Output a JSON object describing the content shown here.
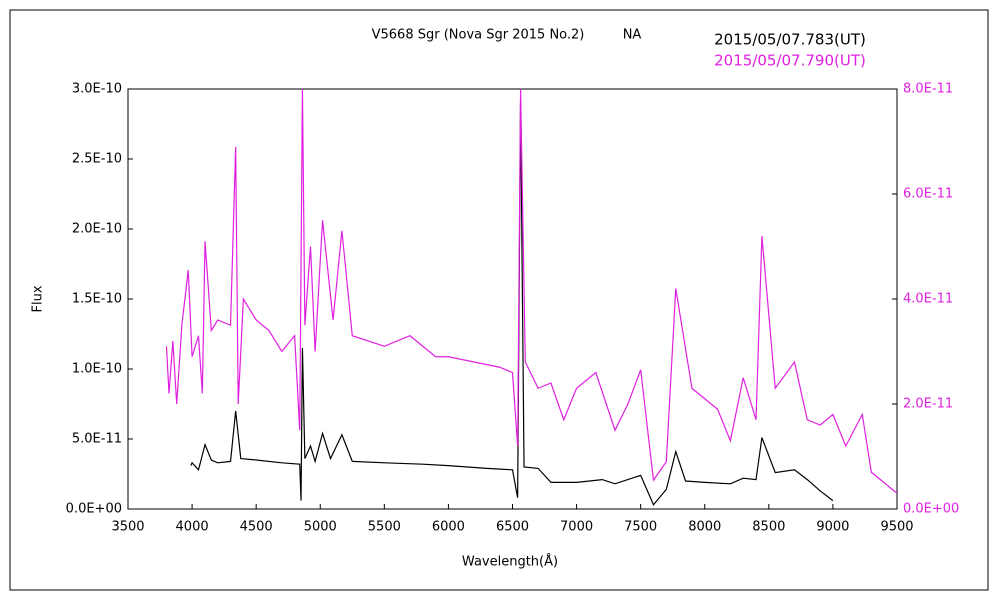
{
  "chart_data": {
    "type": "line",
    "title": "V5668 Sgr (Nova Sgr 2015 No.2)",
    "annotation": "NA",
    "xlabel": "Wavelength(Å)",
    "ylabel": "Flux",
    "xlim": [
      3500,
      9500
    ],
    "xticks": [
      3500,
      4000,
      4500,
      5000,
      5500,
      6000,
      6500,
      7000,
      7500,
      8000,
      8500,
      9000,
      9500
    ],
    "ylim": [
      0,
      3e-10
    ],
    "yticks": [
      {
        "value": 0,
        "label": "0.0E+00"
      },
      {
        "value": 5e-11,
        "label": "5.0E-11"
      },
      {
        "value": 1e-10,
        "label": "1.0E-10"
      },
      {
        "value": 1.5e-10,
        "label": "1.5E-10"
      },
      {
        "value": 2e-10,
        "label": "2.0E-10"
      },
      {
        "value": 2.5e-10,
        "label": "2.5E-10"
      },
      {
        "value": 3e-10,
        "label": "3.0E-10"
      }
    ],
    "y2lim": [
      0,
      8e-11
    ],
    "y2ticks": [
      {
        "value": 0,
        "label": "0.0E+00"
      },
      {
        "value": 2e-11,
        "label": "2.0E-11"
      },
      {
        "value": 4e-11,
        "label": "4.0E-11"
      },
      {
        "value": 6e-11,
        "label": "6.0E-11"
      },
      {
        "value": 8e-11,
        "label": "8.0E-11"
      }
    ],
    "series": [
      {
        "name": "2015/05/07.783(UT)",
        "color": "#000000",
        "axis": "y",
        "x": [
          3990,
          4000,
          4050,
          4101,
          4150,
          4200,
          4300,
          4340,
          4380,
          4500,
          4700,
          4840,
          4850,
          4861,
          4880,
          4924,
          4960,
          5018,
          5080,
          5169,
          5250,
          5500,
          5800,
          6000,
          6300,
          6500,
          6540,
          6563,
          6590,
          6700,
          6800,
          7000,
          7200,
          7300,
          7500,
          7600,
          7700,
          7774,
          7850,
          8000,
          8200,
          8300,
          8400,
          8446,
          8550,
          8700,
          8800,
          8900,
          9000
        ],
        "values": [
          3.1e-11,
          3.3e-11,
          2.8e-11,
          4.6e-11,
          3.5e-11,
          3.3e-11,
          3.4e-11,
          7e-11,
          3.6e-11,
          3.5e-11,
          3.3e-11,
          3.2e-11,
          6e-12,
          1.15e-10,
          3.6e-11,
          4.5e-11,
          3.4e-11,
          5.4e-11,
          3.6e-11,
          5.3e-11,
          3.4e-11,
          3.3e-11,
          3.2e-11,
          3.1e-11,
          2.9e-11,
          2.8e-11,
          8e-12,
          2.92e-10,
          3e-11,
          2.9e-11,
          1.9e-11,
          1.9e-11,
          2.1e-11,
          1.8e-11,
          2.4e-11,
          3e-12,
          1.4e-11,
          4.1e-11,
          2e-11,
          1.9e-11,
          1.8e-11,
          2.2e-11,
          2.1e-11,
          5.1e-11,
          2.6e-11,
          2.8e-11,
          2.1e-11,
          1.3e-11,
          6e-12
        ]
      },
      {
        "name": "2015/05/07.790(UT)",
        "color": "#e020e0",
        "axis": "y2",
        "x": [
          3800,
          3820,
          3850,
          3880,
          3920,
          3970,
          4000,
          4050,
          4080,
          4101,
          4150,
          4200,
          4300,
          4340,
          4360,
          4400,
          4500,
          4600,
          4700,
          4800,
          4840,
          4861,
          4880,
          4924,
          4960,
          5018,
          5100,
          5169,
          5250,
          5500,
          5700,
          5900,
          6000,
          6200,
          6400,
          6500,
          6540,
          6563,
          6600,
          6700,
          6800,
          6900,
          7000,
          7150,
          7300,
          7400,
          7500,
          7600,
          7700,
          7774,
          7900,
          8100,
          8200,
          8300,
          8400,
          8446,
          8550,
          8700,
          8800,
          8900,
          9000,
          9100,
          9229,
          9300,
          9400,
          9500
        ],
        "values": [
          3.1e-11,
          2.2e-11,
          3.2e-11,
          2e-11,
          3.5e-11,
          4.55e-11,
          2.9e-11,
          3.3e-11,
          2.2e-11,
          5.1e-11,
          3.4e-11,
          3.6e-11,
          3.5e-11,
          6.9e-11,
          2e-11,
          4e-11,
          3.6e-11,
          3.4e-11,
          3e-11,
          3.3e-11,
          1.5e-11,
          8e-11,
          3.5e-11,
          5e-11,
          3e-11,
          5.5e-11,
          3.6e-11,
          5.3e-11,
          3.3e-11,
          3.1e-11,
          3.3e-11,
          2.9e-11,
          2.9e-11,
          2.8e-11,
          2.7e-11,
          2.6e-11,
          1.2e-11,
          8e-11,
          2.8e-11,
          2.3e-11,
          2.4e-11,
          1.7e-11,
          2.3e-11,
          2.6e-11,
          1.5e-11,
          2e-11,
          2.65e-11,
          5.5e-12,
          9e-12,
          4.2e-11,
          2.3e-11,
          1.9e-11,
          1.3e-11,
          2.5e-11,
          1.7e-11,
          5.2e-11,
          2.3e-11,
          2.8e-11,
          1.7e-11,
          1.6e-11,
          1.8e-11,
          1.2e-11,
          1.8e-11,
          7e-12,
          5e-12,
          3e-12
        ]
      }
    ]
  }
}
